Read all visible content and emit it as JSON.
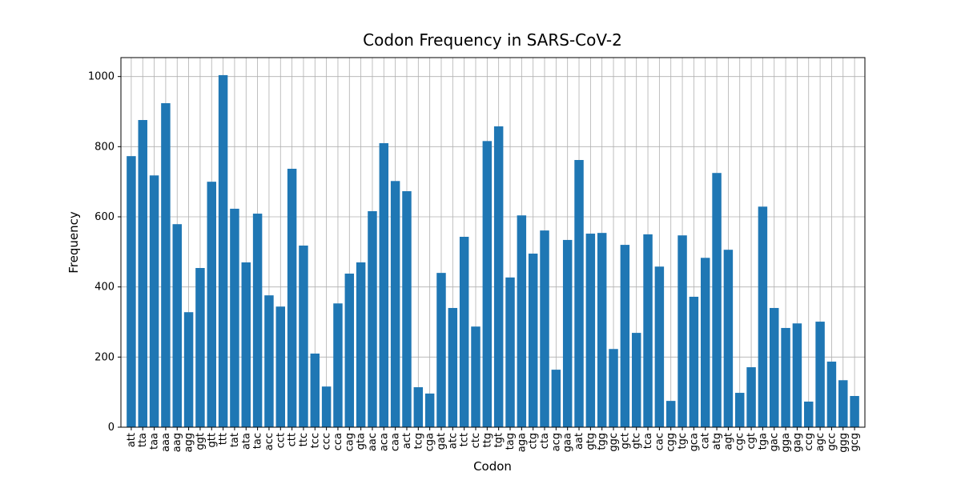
{
  "chart_data": {
    "type": "bar",
    "title": "Codon Frequency in SARS-CoV-2",
    "x_label": "Codon",
    "y_label": "Frequency",
    "categories": [
      "att",
      "tta",
      "taa",
      "aaa",
      "aag",
      "agg",
      "ggt",
      "gtt",
      "ttt",
      "tat",
      "ata",
      "tac",
      "acc",
      "cct",
      "ctt",
      "ttc",
      "tcc",
      "ccc",
      "cca",
      "cag",
      "gta",
      "aac",
      "aca",
      "caa",
      "act",
      "tcg",
      "cga",
      "gat",
      "atc",
      "tct",
      "ctc",
      "ttg",
      "tgt",
      "tag",
      "aga",
      "ctg",
      "cta",
      "acg",
      "gaa",
      "aat",
      "gtg",
      "tgg",
      "ggc",
      "gct",
      "gtc",
      "tca",
      "cac",
      "cgg",
      "tgc",
      "gca",
      "cat",
      "atg",
      "agt",
      "cgc",
      "cgt",
      "tga",
      "gac",
      "gga",
      "gag",
      "ccg",
      "agc",
      "gcc",
      "ggg",
      "gcg"
    ],
    "values": [
      773,
      876,
      718,
      924,
      579,
      328,
      454,
      700,
      1004,
      623,
      470,
      609,
      376,
      344,
      737,
      518,
      210,
      116,
      353,
      438,
      470,
      616,
      810,
      702,
      673,
      114,
      96,
      440,
      340,
      543,
      287,
      816,
      858,
      427,
      604,
      495,
      561,
      164,
      534,
      762,
      552,
      554,
      223,
      520,
      269,
      550,
      458,
      75,
      547,
      372,
      483,
      725,
      506,
      98,
      171,
      629,
      340,
      283,
      296,
      73,
      301,
      187,
      134,
      89
    ],
    "color": "#1f77b4",
    "ylim": [
      0,
      1054
    ],
    "yticks": [
      0,
      200,
      400,
      600,
      800,
      1000
    ],
    "grid": true
  }
}
